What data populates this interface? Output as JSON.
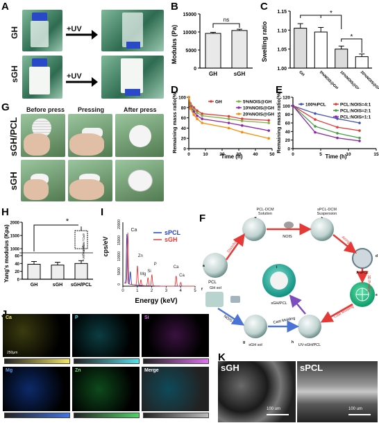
{
  "panels": {
    "A": {
      "label": "A",
      "rows": [
        "GH",
        "sGH"
      ],
      "arrow": "+UV"
    },
    "B": {
      "label": "B",
      "ylabel": "Modulus (Pa)",
      "sig": "ns"
    },
    "C": {
      "label": "C",
      "ylabel": "Swelling ratio",
      "sig": [
        "*",
        "*"
      ]
    },
    "D": {
      "label": "D",
      "ylabel": "Remaining mass ratio(%)",
      "xlabel": "Time (h)"
    },
    "E": {
      "label": "E",
      "ylabel": "Remaining mass ratio(%)",
      "xlabel": "Time (h)"
    },
    "G": {
      "label": "G",
      "cols": [
        "Before press",
        "Pressing",
        "After press"
      ],
      "rows": [
        "sGH/PCL",
        "sGH"
      ]
    },
    "H": {
      "label": "H",
      "ylabel": "Yang's modulus (Kpa)",
      "sig": "*",
      "annot": [
        "sPCL Region",
        "GH Region"
      ]
    },
    "I": {
      "label": "I",
      "ylabel": "cps/eV",
      "xlabel": "Energy (keV)",
      "peaks": [
        "Ca",
        "Zn",
        "Mg",
        "Si",
        "P",
        "Ca",
        "Ca"
      ]
    },
    "F": {
      "label": "F",
      "nodes": {
        "pcl": "PCL",
        "pcl_dcm": "PCL-DCM\nSolution",
        "spcl_dcm": "sPCL-DCM\nSuspension",
        "a_spcl": "A-sPCL",
        "sgh_pcl": "sGH/PCL",
        "sgh_sol": "sGH sol",
        "uv_sgh_pcl": "UV-sGH/PCL",
        "gh_sol": "GH sol"
      },
      "letters": [
        "a",
        "b",
        "c",
        "d",
        "e",
        "f",
        "g",
        "h",
        "i"
      ],
      "arrows": [
        "Dissolve",
        "NOIS",
        "Airing",
        "3D Printing",
        "Cast Molding",
        "NOIS",
        "Cast Molding"
      ]
    },
    "J": {
      "label": "J",
      "elements": [
        "Ca",
        "P",
        "Si",
        "Mg",
        "Zn",
        "Merge"
      ],
      "scalebar": "250μm"
    },
    "K": {
      "label": "K",
      "images": [
        "sGH",
        "sPCL"
      ],
      "scalebar": "100 um"
    }
  },
  "chart_data": [
    {
      "panel": "B",
      "type": "bar",
      "categories": [
        "GH",
        "sGH"
      ],
      "values": [
        9600,
        10400
      ],
      "errors": [
        300,
        350
      ],
      "ylim": [
        0,
        15000
      ],
      "yticks": [
        0,
        5000,
        10000,
        15000
      ],
      "ylabel": "Modulus (Pa)"
    },
    {
      "panel": "C",
      "type": "bar",
      "categories": [
        "GH",
        "5%NOIS@GH",
        "10%NOIS@GH",
        "20%NOIS@GH"
      ],
      "values": [
        1.105,
        1.095,
        1.05,
        1.03
      ],
      "errors": [
        0.012,
        0.012,
        0.008,
        0.007
      ],
      "ylim": [
        1.0,
        1.15
      ],
      "yticks": [
        1.0,
        1.05,
        1.1,
        1.15
      ],
      "ylabel": "Swelling ratio"
    },
    {
      "panel": "D",
      "type": "line",
      "xlabel": "Time (h)",
      "ylabel": "Remaining mass ratio(%)",
      "xlim": [
        0,
        50
      ],
      "ylim": [
        0,
        100
      ],
      "xticks": [
        0,
        10,
        20,
        30,
        40,
        50
      ],
      "yticks": [
        0,
        20,
        40,
        60,
        80,
        100
      ],
      "x": [
        0,
        1,
        3,
        5,
        8,
        24,
        32,
        48
      ],
      "series": [
        {
          "name": "GH",
          "color": "#e53935",
          "values": [
            100,
            88,
            80,
            74,
            68,
            63,
            58,
            55
          ]
        },
        {
          "name": "5%NOIS@GH",
          "color": "#7cb342",
          "values": [
            100,
            86,
            76,
            70,
            64,
            58,
            54,
            50
          ]
        },
        {
          "name": "10%NOIS@GH",
          "color": "#8e24aa",
          "values": [
            100,
            82,
            72,
            64,
            58,
            50,
            45,
            35
          ]
        },
        {
          "name": "20%NOIS@GH",
          "color": "#fb8c00",
          "values": [
            100,
            78,
            66,
            58,
            50,
            40,
            32,
            20
          ]
        }
      ]
    },
    {
      "panel": "E",
      "type": "line",
      "xlabel": "Time (h)",
      "ylabel": "Remaining mass ratio(%)",
      "xlim": [
        0,
        15
      ],
      "ylim": [
        0,
        120
      ],
      "xticks": [
        0,
        5,
        10,
        15
      ],
      "yticks": [
        0,
        20,
        40,
        60,
        80,
        100,
        120
      ],
      "x": [
        0,
        4,
        8,
        12
      ],
      "series": [
        {
          "name": "100%PCL",
          "color": "#3f51b5",
          "values": [
            100,
            82,
            70,
            60
          ]
        },
        {
          "name": "PCL:NOIS=4:1",
          "color": "#e53935",
          "values": [
            100,
            68,
            50,
            42
          ]
        },
        {
          "name": "PCL:NOIS=2:1",
          "color": "#43a047",
          "values": [
            100,
            52,
            36,
            25
          ]
        },
        {
          "name": "PCL:NOIS=1:1",
          "color": "#8e24aa",
          "values": [
            100,
            38,
            25,
            18
          ]
        }
      ]
    },
    {
      "panel": "H",
      "type": "bar",
      "categories": [
        "GH",
        "sGH",
        "sGH/PCL"
      ],
      "values": [
        38,
        36,
        40
      ],
      "stacked_top": [
        null,
        null,
        1680
      ],
      "ylim": [
        0,
        2000
      ],
      "yticks": [
        0,
        20,
        40,
        60,
        1000,
        1500,
        2000
      ],
      "ylabel": "Yang's modulus (Kpa)"
    },
    {
      "panel": "I",
      "type": "line",
      "xlabel": "Energy (keV)",
      "ylabel": "cps/eV",
      "xlim": [
        0,
        5
      ],
      "ylim": [
        0,
        20000
      ],
      "xticks": [
        0,
        1,
        2,
        3,
        4,
        5
      ],
      "yticks": [
        0,
        5000,
        10000,
        15000,
        20000
      ],
      "series": [
        {
          "name": "sPCL",
          "color": "#1e40c8"
        },
        {
          "name": "sGH",
          "color": "#e53935"
        }
      ]
    }
  ],
  "colors": {
    "gh": "#e53935",
    "ns5": "#7cb342",
    "ns10": "#8e24aa",
    "ns20": "#fb8c00",
    "pcl": "#3f51b5",
    "bar": "#f2f2f2"
  }
}
